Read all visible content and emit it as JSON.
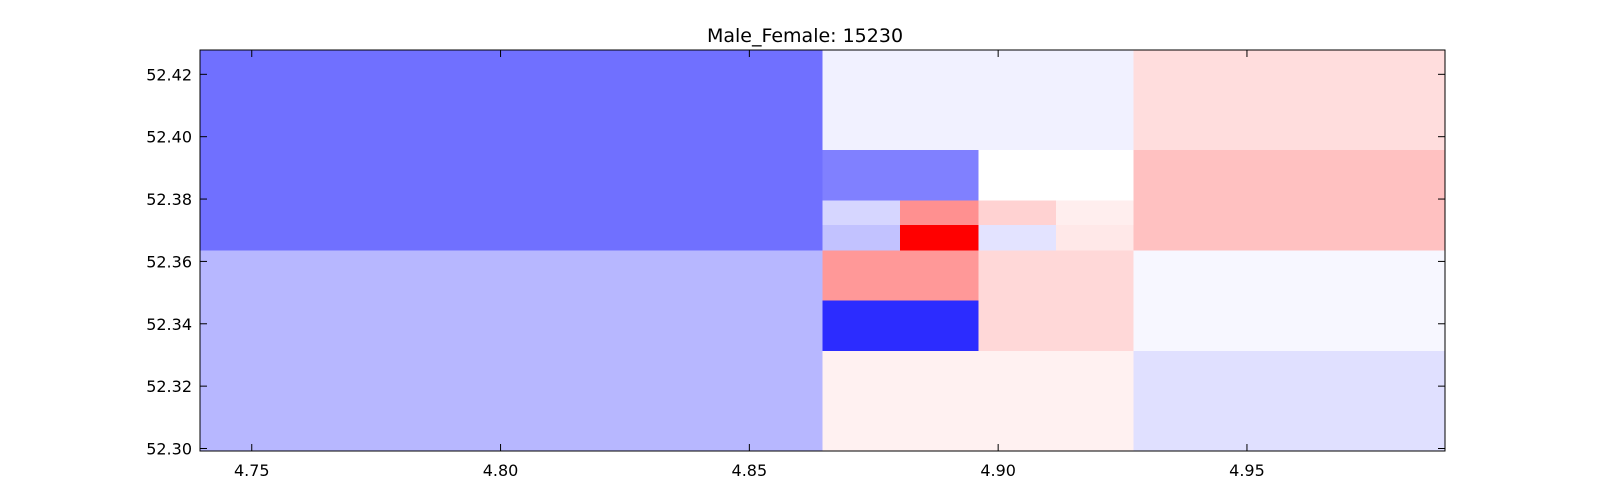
{
  "chart_data": {
    "type": "heatmap",
    "title": "Male_Female: 15230",
    "xlabel": "",
    "ylabel": "",
    "xlim": [
      4.7396,
      4.9898
    ],
    "ylim": [
      52.2992,
      52.4278
    ],
    "xticks": [
      4.75,
      4.8,
      4.85,
      4.9,
      4.95
    ],
    "xtick_labels": [
      "4.75",
      "4.80",
      "4.85",
      "4.90",
      "4.95"
    ],
    "yticks": [
      52.3,
      52.32,
      52.34,
      52.36,
      52.38,
      52.4,
      52.42
    ],
    "ytick_labels": [
      "52.30",
      "52.32",
      "52.34",
      "52.36",
      "52.38",
      "52.40",
      "52.42"
    ],
    "grid": false,
    "colormap": "bwr",
    "cells": [
      {
        "x0": 4.7396,
        "x1": 4.8647,
        "y0": 52.3635,
        "y1": 52.4278,
        "color": "#7070ff"
      },
      {
        "x0": 4.8647,
        "x1": 4.9272,
        "y0": 52.3957,
        "y1": 52.4278,
        "color": "#f1f1ff"
      },
      {
        "x0": 4.9272,
        "x1": 4.9898,
        "y0": 52.3957,
        "y1": 52.4278,
        "color": "#ffdddd"
      },
      {
        "x0": 4.8647,
        "x1": 4.896,
        "y0": 52.3796,
        "y1": 52.3957,
        "color": "#8080ff"
      },
      {
        "x0": 4.896,
        "x1": 4.9272,
        "y0": 52.3796,
        "y1": 52.3957,
        "color": "#ffffff"
      },
      {
        "x0": 4.9272,
        "x1": 4.9898,
        "y0": 52.3635,
        "y1": 52.3957,
        "color": "#ffc1c1"
      },
      {
        "x0": 4.8647,
        "x1": 4.8803,
        "y0": 52.3716,
        "y1": 52.3796,
        "color": "#d6d6ff"
      },
      {
        "x0": 4.8803,
        "x1": 4.896,
        "y0": 52.3716,
        "y1": 52.3796,
        "color": "#ff9090"
      },
      {
        "x0": 4.896,
        "x1": 4.9116,
        "y0": 52.3716,
        "y1": 52.3796,
        "color": "#ffd2d2"
      },
      {
        "x0": 4.9116,
        "x1": 4.9272,
        "y0": 52.3716,
        "y1": 52.3796,
        "color": "#ffeeee"
      },
      {
        "x0": 4.8647,
        "x1": 4.8803,
        "y0": 52.3635,
        "y1": 52.3716,
        "color": "#c2c2ff"
      },
      {
        "x0": 4.8803,
        "x1": 4.896,
        "y0": 52.3635,
        "y1": 52.3716,
        "color": "#ff0000"
      },
      {
        "x0": 4.896,
        "x1": 4.9116,
        "y0": 52.3635,
        "y1": 52.3716,
        "color": "#e3e3ff"
      },
      {
        "x0": 4.9116,
        "x1": 4.9272,
        "y0": 52.3635,
        "y1": 52.3716,
        "color": "#ffe8e8"
      },
      {
        "x0": 4.7396,
        "x1": 4.8647,
        "y0": 52.2992,
        "y1": 52.3635,
        "color": "#b7b7ff"
      },
      {
        "x0": 4.8647,
        "x1": 4.896,
        "y0": 52.3474,
        "y1": 52.3635,
        "color": "#ff9898"
      },
      {
        "x0": 4.8647,
        "x1": 4.896,
        "y0": 52.3313,
        "y1": 52.3474,
        "color": "#2c2cff"
      },
      {
        "x0": 4.896,
        "x1": 4.9272,
        "y0": 52.3313,
        "y1": 52.3635,
        "color": "#ffd8d8"
      },
      {
        "x0": 4.9272,
        "x1": 4.9898,
        "y0": 52.3313,
        "y1": 52.3635,
        "color": "#f7f7ff"
      },
      {
        "x0": 4.8647,
        "x1": 4.9272,
        "y0": 52.2992,
        "y1": 52.3313,
        "color": "#fff1f1"
      },
      {
        "x0": 4.9272,
        "x1": 4.9898,
        "y0": 52.2992,
        "y1": 52.3313,
        "color": "#e0e0ff"
      }
    ]
  }
}
